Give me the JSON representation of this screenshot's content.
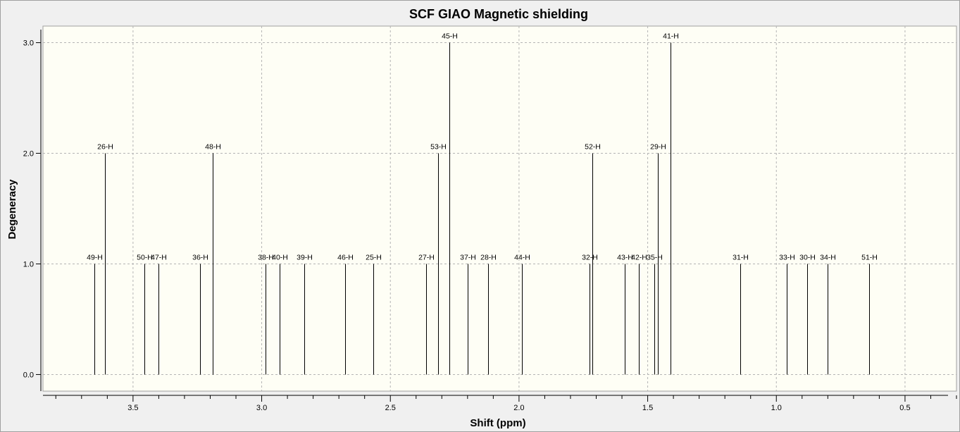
{
  "chart_data": {
    "type": "bar",
    "subtype": "stick-spectrum",
    "title": "SCF GIAO Magnetic shielding",
    "xlabel": "Shift (ppm)",
    "ylabel": "Degeneracy",
    "xlim": [
      3.85,
      0.3
    ],
    "ylim": [
      -0.15,
      3.15
    ],
    "x_reversed": true,
    "x_ticks": [
      "3.5",
      "3.0",
      "2.5",
      "2.0",
      "1.5",
      "1.0",
      "0.5"
    ],
    "x_tick_values": [
      3.5,
      3.0,
      2.5,
      2.0,
      1.5,
      1.0,
      0.5
    ],
    "y_ticks": [
      "0.0",
      "1.0",
      "2.0",
      "3.0"
    ],
    "y_tick_values": [
      0,
      1,
      2,
      3
    ],
    "grid": true,
    "colors": {
      "plot_background": "#fefef5",
      "outer_background": "#f0f0f0",
      "stick": "#000000",
      "grid": "#b4b4b4"
    },
    "peaks": [
      {
        "label": "49-H",
        "shift": 3.65,
        "degeneracy": 1
      },
      {
        "label": "26-H",
        "shift": 3.61,
        "degeneracy": 2
      },
      {
        "label": "50-H",
        "shift": 3.455,
        "degeneracy": 1
      },
      {
        "label": "47-H",
        "shift": 3.4,
        "degeneracy": 1
      },
      {
        "label": "36-H",
        "shift": 3.24,
        "degeneracy": 1
      },
      {
        "label": "48-H",
        "shift": 3.19,
        "degeneracy": 2
      },
      {
        "label": "38-H",
        "shift": 2.985,
        "degeneracy": 1
      },
      {
        "label": "40-H",
        "shift": 2.93,
        "degeneracy": 1
      },
      {
        "label": "39-H",
        "shift": 2.835,
        "degeneracy": 1
      },
      {
        "label": "46-H",
        "shift": 2.675,
        "degeneracy": 1
      },
      {
        "label": "25-H",
        "shift": 2.565,
        "degeneracy": 1
      },
      {
        "label": "27-H",
        "shift": 2.36,
        "degeneracy": 1
      },
      {
        "label": "53-H",
        "shift": 2.315,
        "degeneracy": 2
      },
      {
        "label": "45-H",
        "shift": 2.27,
        "degeneracy": 3
      },
      {
        "label": "37-H",
        "shift": 2.2,
        "degeneracy": 1
      },
      {
        "label": "28-H",
        "shift": 2.12,
        "degeneracy": 1
      },
      {
        "label": "44-H",
        "shift": 1.99,
        "degeneracy": 1
      },
      {
        "label": "32-H",
        "shift": 1.725,
        "degeneracy": 1
      },
      {
        "label": "52-H",
        "shift": 1.715,
        "degeneracy": 2
      },
      {
        "label": "43-H",
        "shift": 1.59,
        "degeneracy": 1
      },
      {
        "label": "42-H",
        "shift": 1.535,
        "degeneracy": 1
      },
      {
        "label": "35-H",
        "shift": 1.475,
        "degeneracy": 1
      },
      {
        "label": "29-H",
        "shift": 1.46,
        "degeneracy": 2
      },
      {
        "label": "41-H",
        "shift": 1.41,
        "degeneracy": 3
      },
      {
        "label": "31-H",
        "shift": 1.14,
        "degeneracy": 1
      },
      {
        "label": "33-H",
        "shift": 0.96,
        "degeneracy": 1
      },
      {
        "label": "30-H",
        "shift": 0.88,
        "degeneracy": 1
      },
      {
        "label": "34-H",
        "shift": 0.8,
        "degeneracy": 1
      },
      {
        "label": "51-H",
        "shift": 0.64,
        "degeneracy": 1
      }
    ]
  }
}
